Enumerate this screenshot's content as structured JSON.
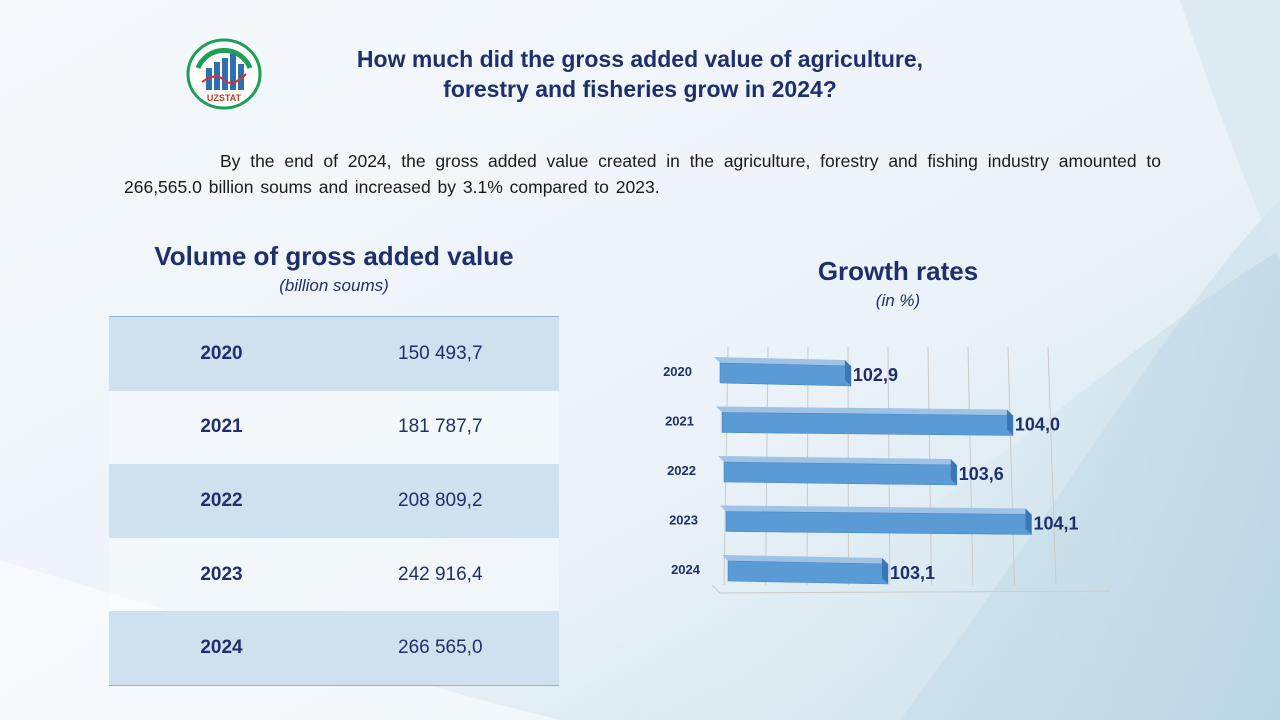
{
  "header": {
    "logo_text": "UZSTAT",
    "title_line1": "How much did the gross added value of agriculture,",
    "title_line2": "forestry and fisheries grow in 2024?"
  },
  "intro": "By the end of 2024, the gross added value created in the agriculture, forestry and fishing industry amounted to 266,565.0 billion soums and increased by 3.1% compared to 2023.",
  "volume": {
    "title": "Volume of gross added value",
    "subtitle": "(billion soums)",
    "rows": [
      {
        "year": "2020",
        "value": "150 493,7"
      },
      {
        "year": "2021",
        "value": "181 787,7"
      },
      {
        "year": "2022",
        "value": "208 809,2"
      },
      {
        "year": "2023",
        "value": "242 916,4"
      },
      {
        "year": "2024",
        "value": "266 565,0"
      }
    ]
  },
  "colors": {
    "title": "#1f2f6b",
    "bar_front": "#5b9bd5",
    "bar_top": "#9ec3e6",
    "bar_side": "#3a78b5",
    "table_shade": "#cfe0ef"
  },
  "chart_data": {
    "type": "bar",
    "orientation": "horizontal",
    "title": "Growth rates",
    "subtitle": "(in %)",
    "categories": [
      "2020",
      "2021",
      "2022",
      "2023",
      "2024"
    ],
    "values": [
      102.9,
      104.0,
      103.6,
      104.1,
      103.1
    ],
    "value_labels": [
      "102,9",
      "104,0",
      "103,6",
      "104,1",
      "103,1"
    ],
    "xlim": [
      102.0,
      104.2
    ],
    "grid": true,
    "legend": "none"
  }
}
